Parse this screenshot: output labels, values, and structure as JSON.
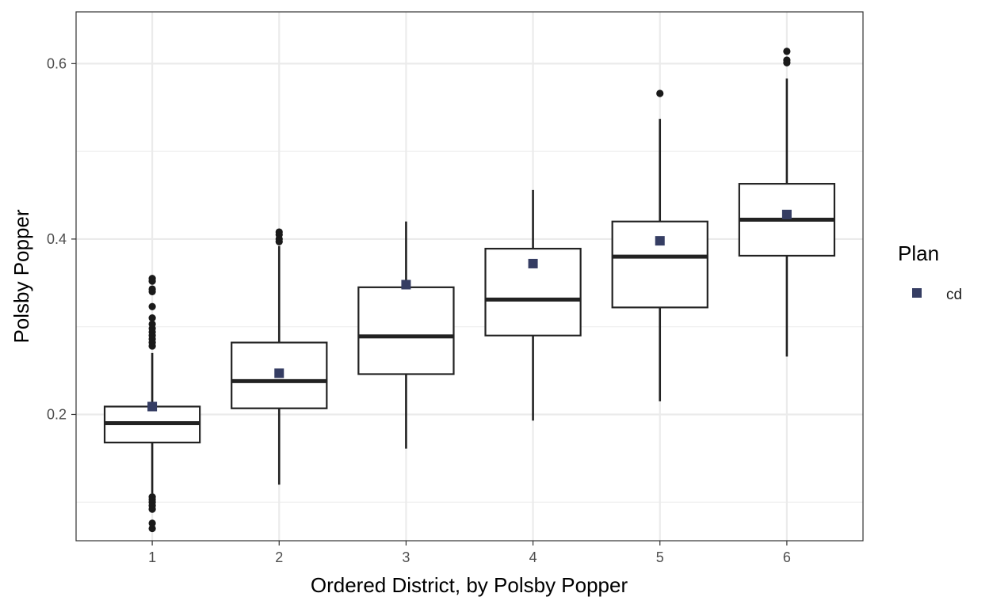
{
  "chart_data": {
    "type": "boxplot",
    "title": "",
    "xlabel": "Ordered District, by Polsby Popper",
    "ylabel": "Polsby Popper",
    "categories": [
      "1",
      "2",
      "3",
      "4",
      "5",
      "6"
    ],
    "xlim": [
      0.4,
      6.6
    ],
    "ylim": [
      0.056,
      0.659
    ],
    "y_ticks": [
      0.2,
      0.4,
      0.6
    ],
    "y_tick_labels": [
      "0.2",
      "0.4",
      "0.6"
    ],
    "grid": true,
    "boxes": [
      {
        "category": "1",
        "whisker_low": 0.11,
        "q1": 0.168,
        "median": 0.19,
        "q3": 0.209,
        "whisker_high": 0.27,
        "outliers": [
          0.355,
          0.352,
          0.343,
          0.34,
          0.323,
          0.31,
          0.303,
          0.298,
          0.294,
          0.29,
          0.286,
          0.282,
          0.278,
          0.106,
          0.103,
          0.1,
          0.096,
          0.092,
          0.076,
          0.07
        ]
      },
      {
        "category": "2",
        "whisker_low": 0.12,
        "q1": 0.207,
        "median": 0.238,
        "q3": 0.282,
        "whisker_high": 0.392,
        "outliers": [
          0.408,
          0.405,
          0.4,
          0.397
        ]
      },
      {
        "category": "3",
        "whisker_low": 0.161,
        "q1": 0.246,
        "median": 0.289,
        "q3": 0.345,
        "whisker_high": 0.42,
        "outliers": []
      },
      {
        "category": "4",
        "whisker_low": 0.193,
        "q1": 0.29,
        "median": 0.331,
        "q3": 0.389,
        "whisker_high": 0.456,
        "outliers": []
      },
      {
        "category": "5",
        "whisker_low": 0.215,
        "q1": 0.322,
        "median": 0.38,
        "q3": 0.42,
        "whisker_high": 0.537,
        "outliers": [
          0.566
        ]
      },
      {
        "category": "6",
        "whisker_low": 0.266,
        "q1": 0.381,
        "median": 0.422,
        "q3": 0.463,
        "whisker_high": 0.583,
        "outliers": [
          0.614,
          0.604,
          0.601
        ]
      }
    ],
    "series": [
      {
        "name": "cd",
        "color": "#353d63",
        "marker": "square",
        "values": [
          0.209,
          0.247,
          0.348,
          0.372,
          0.398,
          0.428
        ]
      }
    ],
    "legend": {
      "title": "Plan",
      "position": "right"
    }
  }
}
